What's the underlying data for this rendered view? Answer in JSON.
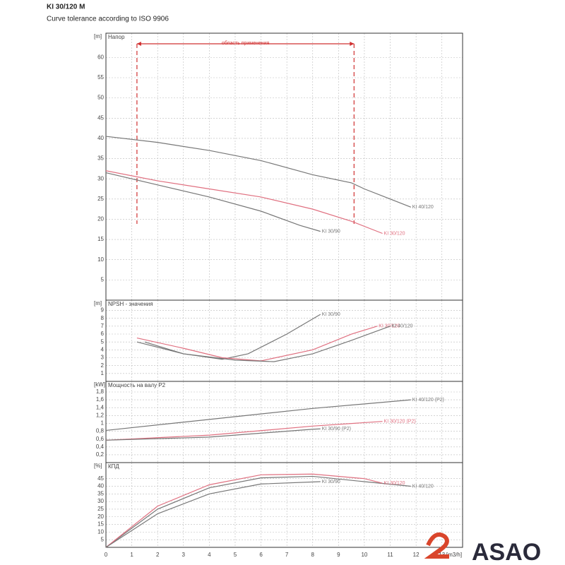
{
  "title": "KI 30/120 M",
  "subtitle": "Curve tolerance according to ISO 9906",
  "brand": "ASAO",
  "chart_data": [
    {
      "type": "line",
      "title": "Напор",
      "y_unit": "[m]",
      "xlim": [
        0,
        13.8
      ],
      "ylim": [
        0,
        66
      ],
      "yticks": [
        5,
        10,
        15,
        20,
        25,
        30,
        35,
        40,
        45,
        50,
        55,
        60
      ],
      "grid": true,
      "application_range": {
        "label": "область применения",
        "x": [
          1.2,
          9.6
        ]
      },
      "series": [
        {
          "name": "KI 40/120",
          "color": "#777777",
          "x": [
            0,
            2,
            4,
            6,
            8,
            9.5,
            10,
            11,
            11.8
          ],
          "values": [
            40.5,
            39,
            37,
            34.5,
            31,
            29,
            27.5,
            25,
            23
          ]
        },
        {
          "name": "KI 30/120",
          "color": "#e07080",
          "x": [
            0,
            2,
            4,
            6,
            8,
            9.5,
            10.7
          ],
          "values": [
            32,
            29.5,
            27.5,
            25.5,
            22.5,
            19.5,
            16.5
          ]
        },
        {
          "name": "KI 30/90",
          "color": "#777777",
          "x": [
            0,
            2,
            4,
            6,
            7.5,
            8.3
          ],
          "values": [
            31.5,
            28.5,
            25.5,
            22,
            18.5,
            17
          ]
        }
      ]
    },
    {
      "type": "line",
      "title": "NPSH - значения",
      "y_unit": "[m]",
      "xlim": [
        0,
        13.8
      ],
      "ylim": [
        0,
        10.3
      ],
      "yticks": [
        1,
        2,
        3,
        4,
        5,
        6,
        7,
        8,
        9
      ],
      "grid": true,
      "series": [
        {
          "name": "KI 30/90",
          "color": "#777777",
          "x": [
            1.2,
            3,
            4.5,
            5.5,
            7,
            8.3
          ],
          "values": [
            5,
            3.5,
            2.8,
            3.5,
            6,
            8.5
          ]
        },
        {
          "name": "KI 30/120",
          "color": "#e07080",
          "x": [
            1.2,
            3,
            4.5,
            6,
            8,
            9.5,
            10.5
          ],
          "values": [
            5.5,
            4.2,
            3,
            2.6,
            4,
            6,
            7
          ]
        },
        {
          "name": "KI 40/120",
          "color": "#777777",
          "x": [
            1.5,
            3,
            5,
            6.5,
            8,
            9.5,
            11
          ],
          "values": [
            5,
            3.5,
            2.7,
            2.5,
            3.5,
            5.2,
            7
          ]
        }
      ]
    },
    {
      "type": "line",
      "title": "Мощность на валу P2",
      "y_unit": "[kW]",
      "xlim": [
        0,
        13.8
      ],
      "ylim": [
        0,
        2.07
      ],
      "yticks": [
        {
          "value": 0.2,
          "label": "0,2"
        },
        {
          "value": 0.4,
          "label": "0,4"
        },
        {
          "value": 0.6,
          "label": "0,6"
        },
        {
          "value": 0.8,
          "label": "0,8"
        },
        1,
        {
          "value": 1.2,
          "label": "1,2"
        },
        {
          "value": 1.4,
          "label": "1,4"
        },
        {
          "value": 1.6,
          "label": "1,6"
        },
        {
          "value": 1.8,
          "label": "1,8"
        }
      ],
      "grid": true,
      "series": [
        {
          "name": "KI 40/120 (P2)",
          "color": "#777777",
          "x": [
            0,
            4,
            8,
            11.8
          ],
          "values": [
            0.82,
            1.1,
            1.38,
            1.6
          ]
        },
        {
          "name": "KI 30/120 (P2)",
          "color": "#e07080",
          "x": [
            0,
            4,
            8,
            10.7
          ],
          "values": [
            0.57,
            0.7,
            0.93,
            1.05
          ]
        },
        {
          "name": "KI 30/90 (P2)",
          "color": "#777777",
          "x": [
            0,
            4,
            8,
            8.3
          ],
          "values": [
            0.57,
            0.65,
            0.85,
            0.86
          ]
        }
      ]
    },
    {
      "type": "line",
      "title": "КПД",
      "y_unit": "[%]",
      "x_label": "[m3/h]",
      "xlim": [
        0,
        13.8
      ],
      "ylim": [
        0,
        55.5
      ],
      "xticks": [
        0,
        1,
        2,
        3,
        4,
        5,
        6,
        7,
        8,
        9,
        10,
        11,
        12,
        13
      ],
      "yticks": [
        5,
        10,
        15,
        20,
        25,
        30,
        35,
        40,
        45
      ],
      "grid": true,
      "series": [
        {
          "name": "KI 40/120",
          "color": "#777777",
          "x": [
            0,
            2,
            4,
            6,
            8,
            10,
            11.8
          ],
          "values": [
            0,
            25,
            39,
            45.5,
            46.5,
            43,
            40
          ]
        },
        {
          "name": "KI 30/120",
          "color": "#e07080",
          "x": [
            0,
            2,
            4,
            6,
            8,
            10,
            10.7
          ],
          "values": [
            0,
            27,
            41,
            47.5,
            48,
            45,
            42
          ]
        },
        {
          "name": "KI 30/90",
          "color": "#777777",
          "x": [
            0,
            2,
            4,
            6,
            8.3
          ],
          "values": [
            0,
            22,
            35,
            41.5,
            43
          ]
        }
      ]
    }
  ]
}
